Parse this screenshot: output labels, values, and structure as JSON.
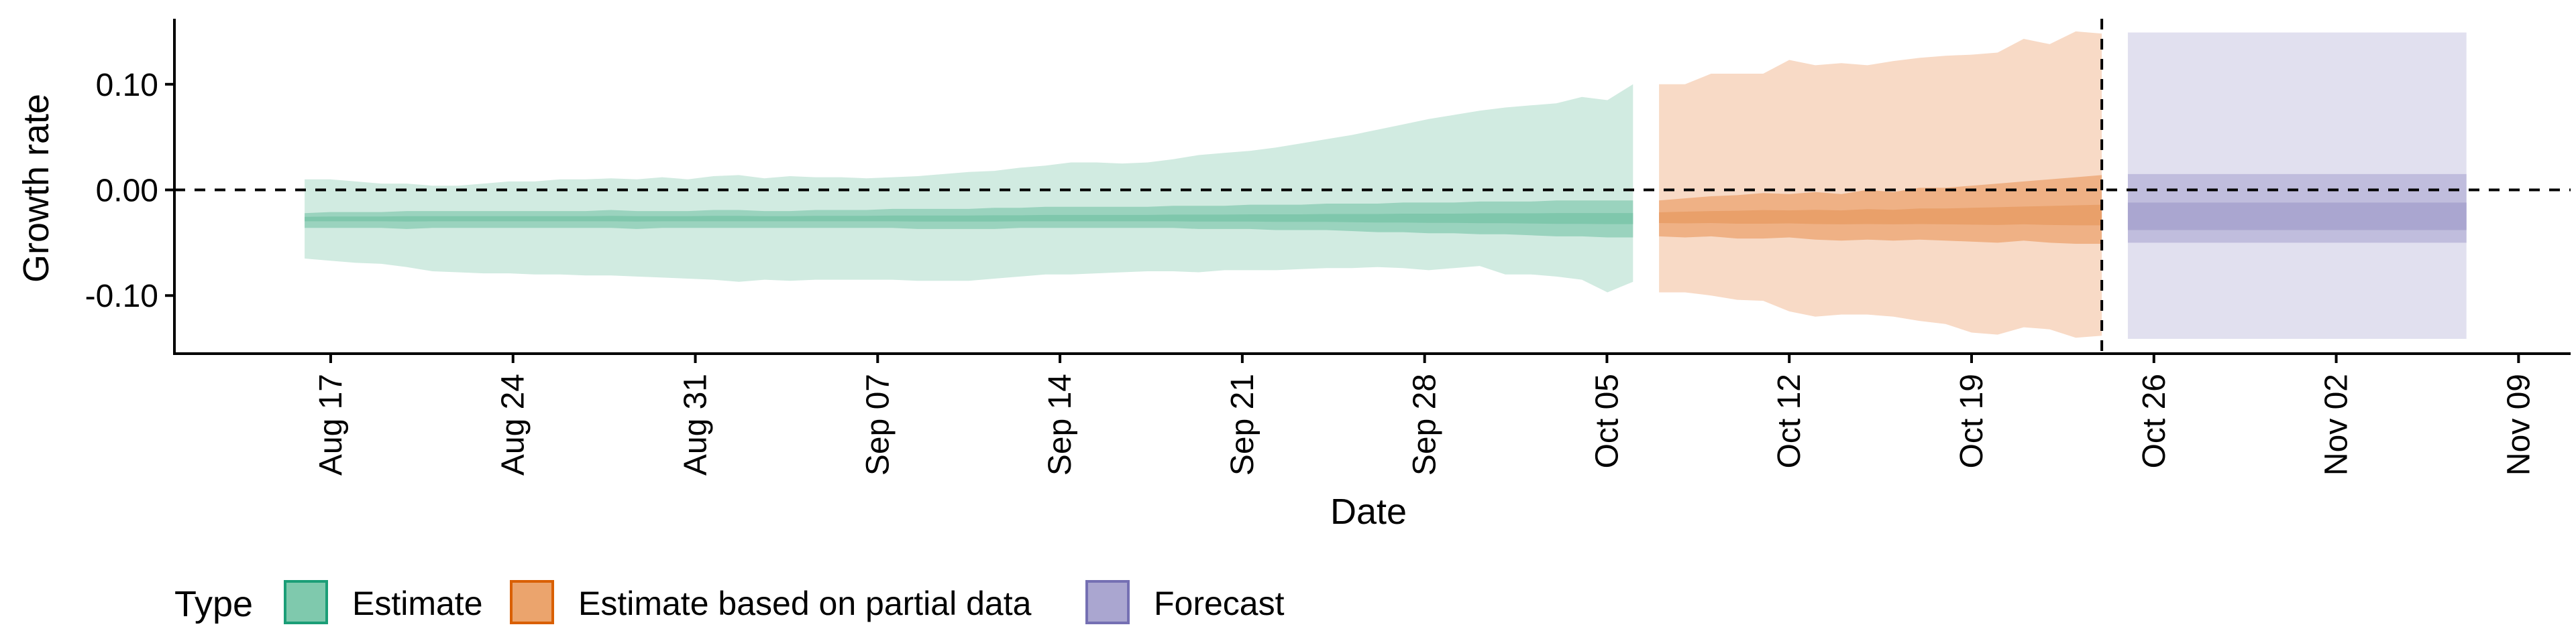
{
  "chart_data": {
    "type": "area",
    "title": "",
    "xlabel": "Date",
    "ylabel": "Growth rate",
    "x_range": [
      "2020-08-11",
      "2020-11-11"
    ],
    "ylim": [
      -0.155,
      0.162
    ],
    "y_ticks": [
      -0.1,
      0.0,
      0.1
    ],
    "y_tick_labels": [
      "-0.10",
      "0.00",
      "0.10"
    ],
    "x_ticks": [
      "2020-08-17",
      "2020-08-24",
      "2020-08-31",
      "2020-09-07",
      "2020-09-14",
      "2020-09-21",
      "2020-09-28",
      "2020-10-05",
      "2020-10-12",
      "2020-10-19",
      "2020-10-26",
      "2020-11-02",
      "2020-11-09"
    ],
    "x_tick_labels": [
      "Aug 17",
      "Aug 24",
      "Aug 31",
      "Sep 07",
      "Sep 14",
      "Sep 21",
      "Sep 28",
      "Oct 05",
      "Oct 12",
      "Oct 19",
      "Oct 26",
      "Nov 02",
      "Nov 09"
    ],
    "reference_hline_y": 0,
    "reference_vline_date": "2020-10-24",
    "grid": false,
    "legend": {
      "title": "Type",
      "position": "bottom-left",
      "entries": [
        {
          "label": "Estimate",
          "fill": "#7fc9ad",
          "stroke": "#1b9e77"
        },
        {
          "label": "Estimate based on partial data",
          "fill": "#eba46d",
          "stroke": "#d95f02"
        },
        {
          "label": "Forecast",
          "fill": "#aaa6d0",
          "stroke": "#7570b3"
        }
      ]
    },
    "series": [
      {
        "name": "Estimate",
        "x_start": "2020-08-16",
        "x_end": "2020-10-06",
        "median": -0.027,
        "outer_lower": [
          -0.065,
          -0.067,
          -0.069,
          -0.07,
          -0.073,
          -0.077,
          -0.078,
          -0.079,
          -0.079,
          -0.08,
          -0.08,
          -0.081,
          -0.081,
          -0.082,
          -0.083,
          -0.084,
          -0.085,
          -0.087,
          -0.085,
          -0.086,
          -0.085,
          -0.085,
          -0.085,
          -0.085,
          -0.086,
          -0.086,
          -0.086,
          -0.084,
          -0.082,
          -0.08,
          -0.08,
          -0.079,
          -0.078,
          -0.077,
          -0.077,
          -0.078,
          -0.076,
          -0.076,
          -0.076,
          -0.075,
          -0.074,
          -0.074,
          -0.073,
          -0.074,
          -0.076,
          -0.074,
          -0.072,
          -0.08,
          -0.08,
          -0.082,
          -0.085,
          -0.097,
          -0.087
        ],
        "outer_upper": [
          0.01,
          0.01,
          0.008,
          0.006,
          0.006,
          0.004,
          0.004,
          0.006,
          0.008,
          0.008,
          0.01,
          0.01,
          0.011,
          0.01,
          0.012,
          0.01,
          0.013,
          0.014,
          0.011,
          0.013,
          0.012,
          0.012,
          0.011,
          0.012,
          0.013,
          0.015,
          0.017,
          0.018,
          0.021,
          0.023,
          0.026,
          0.026,
          0.025,
          0.026,
          0.029,
          0.033,
          0.035,
          0.037,
          0.04,
          0.044,
          0.048,
          0.052,
          0.057,
          0.062,
          0.067,
          0.071,
          0.075,
          0.078,
          0.08,
          0.082,
          0.088,
          0.085,
          0.1
        ],
        "inner_lower": [
          -0.036,
          -0.036,
          -0.036,
          -0.036,
          -0.037,
          -0.036,
          -0.036,
          -0.036,
          -0.036,
          -0.036,
          -0.036,
          -0.036,
          -0.036,
          -0.037,
          -0.036,
          -0.036,
          -0.036,
          -0.036,
          -0.036,
          -0.036,
          -0.036,
          -0.036,
          -0.036,
          -0.036,
          -0.037,
          -0.037,
          -0.037,
          -0.037,
          -0.036,
          -0.036,
          -0.036,
          -0.036,
          -0.036,
          -0.036,
          -0.036,
          -0.037,
          -0.037,
          -0.037,
          -0.038,
          -0.038,
          -0.038,
          -0.039,
          -0.04,
          -0.04,
          -0.041,
          -0.041,
          -0.042,
          -0.042,
          -0.043,
          -0.044,
          -0.044,
          -0.045,
          -0.045
        ],
        "inner_upper": [
          -0.022,
          -0.021,
          -0.021,
          -0.021,
          -0.02,
          -0.02,
          -0.02,
          -0.02,
          -0.02,
          -0.02,
          -0.02,
          -0.02,
          -0.019,
          -0.02,
          -0.02,
          -0.02,
          -0.019,
          -0.019,
          -0.02,
          -0.02,
          -0.019,
          -0.019,
          -0.019,
          -0.018,
          -0.018,
          -0.018,
          -0.018,
          -0.017,
          -0.017,
          -0.016,
          -0.016,
          -0.016,
          -0.016,
          -0.016,
          -0.015,
          -0.015,
          -0.015,
          -0.014,
          -0.014,
          -0.014,
          -0.013,
          -0.013,
          -0.013,
          -0.012,
          -0.012,
          -0.012,
          -0.011,
          -0.011,
          -0.011,
          -0.01,
          -0.01,
          -0.01,
          -0.01
        ]
      },
      {
        "name": "Estimate based on partial data",
        "x_start": "2020-10-07",
        "x_end": "2020-10-24",
        "median": -0.026,
        "outer_lower": [
          -0.097,
          -0.097,
          -0.1,
          -0.104,
          -0.105,
          -0.115,
          -0.12,
          -0.118,
          -0.118,
          -0.12,
          -0.124,
          -0.127,
          -0.135,
          -0.137,
          -0.13,
          -0.132,
          -0.14,
          -0.138
        ],
        "outer_upper": [
          0.1,
          0.1,
          0.11,
          0.11,
          0.11,
          0.123,
          0.118,
          0.12,
          0.118,
          0.122,
          0.125,
          0.127,
          0.128,
          0.13,
          0.143,
          0.138,
          0.15,
          0.148
        ],
        "inner_lower": [
          -0.044,
          -0.045,
          -0.044,
          -0.046,
          -0.046,
          -0.045,
          -0.047,
          -0.048,
          -0.047,
          -0.048,
          -0.047,
          -0.048,
          -0.049,
          -0.05,
          -0.048,
          -0.05,
          -0.051,
          -0.051
        ],
        "inner_upper": [
          -0.01,
          -0.008,
          -0.006,
          -0.005,
          -0.003,
          -0.004,
          -0.002,
          -0.004,
          0.0,
          -0.002,
          0.002,
          0.002,
          0.004,
          0.006,
          0.008,
          0.01,
          0.012,
          0.014
        ]
      },
      {
        "name": "Forecast",
        "x_start": "2020-10-25",
        "x_end": "2020-11-07",
        "median": -0.025,
        "outer_lower": -0.141,
        "outer_upper": 0.149,
        "inner_lower": -0.05,
        "inner_upper": 0.015
      }
    ]
  }
}
